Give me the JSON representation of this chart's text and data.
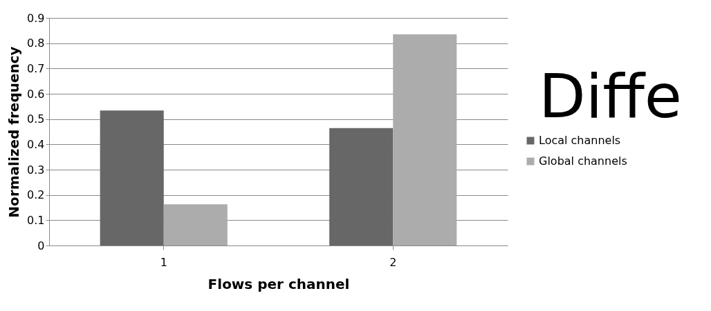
{
  "chart_data": {
    "type": "bar",
    "xlabel": "Flows per channel",
    "ylabel": "Normalized frequency",
    "categories": [
      "1",
      "2"
    ],
    "series": [
      {
        "name": "Local channels",
        "color": "#676767",
        "values": [
          0.534,
          0.464
        ]
      },
      {
        "name": "Global channels",
        "color": "#acacac",
        "values": [
          0.163,
          0.835
        ]
      }
    ],
    "ylim": [
      0,
      0.9
    ],
    "yticks": [
      0,
      0.1,
      0.2,
      0.3,
      0.4,
      0.5,
      0.6,
      0.7,
      0.8,
      0.9
    ],
    "grid": "y",
    "legend": "right",
    "annotations": [
      "Diffe"
    ]
  }
}
